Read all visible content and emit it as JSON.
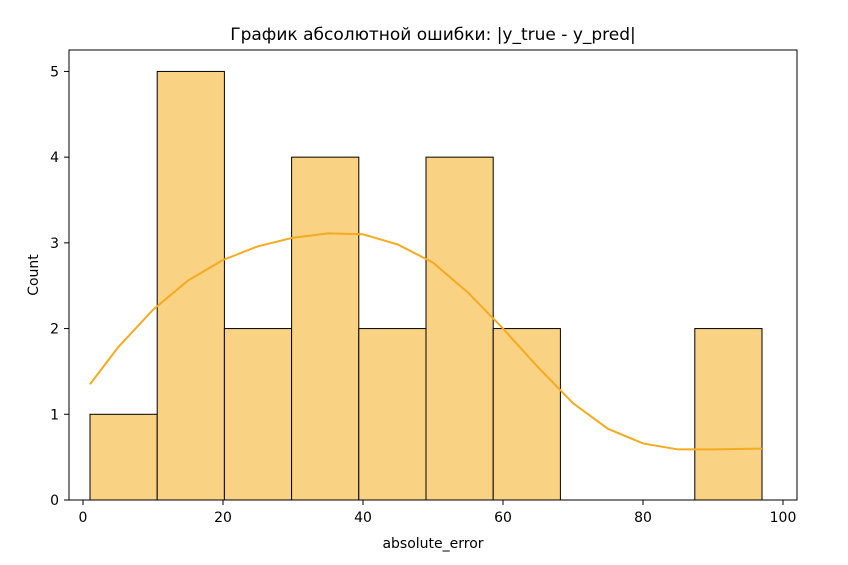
{
  "chart_data": {
    "type": "bar",
    "title": "График абсолютной ошибки: |y_true - y_pred|",
    "xlabel": "absolute_error",
    "ylabel": "Count",
    "xlim": [
      -2,
      102
    ],
    "ylim": [
      0,
      5.25
    ],
    "x_ticks": [
      0,
      20,
      40,
      60,
      80,
      100
    ],
    "y_ticks": [
      0,
      1,
      2,
      3,
      4,
      5
    ],
    "grid": false,
    "bin_edges": [
      1,
      10.6,
      20.2,
      29.8,
      39.4,
      49,
      58.6,
      68.2,
      77.8,
      87.4,
      97
    ],
    "values": [
      1,
      5,
      2,
      4,
      2,
      4,
      2,
      0,
      0,
      2
    ],
    "kde": {
      "x": [
        1,
        5,
        10,
        15,
        20,
        25,
        30,
        35,
        40,
        45,
        50,
        55,
        60,
        65,
        70,
        75,
        80,
        85,
        90,
        97
      ],
      "y": [
        1.35,
        1.78,
        2.22,
        2.56,
        2.8,
        2.96,
        3.06,
        3.11,
        3.1,
        2.98,
        2.77,
        2.42,
        2.0,
        1.55,
        1.13,
        0.83,
        0.66,
        0.59,
        0.59,
        0.6
      ]
    },
    "colors": {
      "bar_fill": "#fad283",
      "bar_edge": "#000000",
      "kde_line": "#f5aa20"
    }
  }
}
